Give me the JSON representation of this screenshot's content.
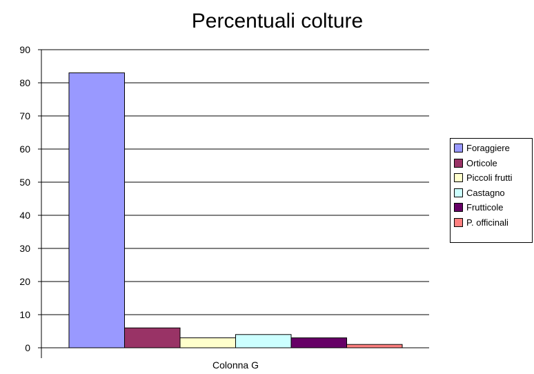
{
  "chart_data": {
    "type": "bar",
    "title": "Percentuali colture",
    "categories": [
      "Colonna G"
    ],
    "ylim": [
      0,
      90
    ],
    "yticks": [
      0,
      10,
      20,
      30,
      40,
      50,
      60,
      70,
      80,
      90
    ],
    "grid": true,
    "legend_position": "right",
    "series": [
      {
        "name": "Foraggiere",
        "values": [
          83
        ],
        "color": "#9999ff"
      },
      {
        "name": "Orticole",
        "values": [
          6
        ],
        "color": "#993366"
      },
      {
        "name": "Piccoli frutti",
        "values": [
          3
        ],
        "color": "#ffffcc"
      },
      {
        "name": "Castagno",
        "values": [
          4
        ],
        "color": "#ccffff"
      },
      {
        "name": "Frutticole",
        "values": [
          3
        ],
        "color": "#660066"
      },
      {
        "name": "P. officinali",
        "values": [
          1
        ],
        "color": "#ff8080"
      }
    ]
  }
}
